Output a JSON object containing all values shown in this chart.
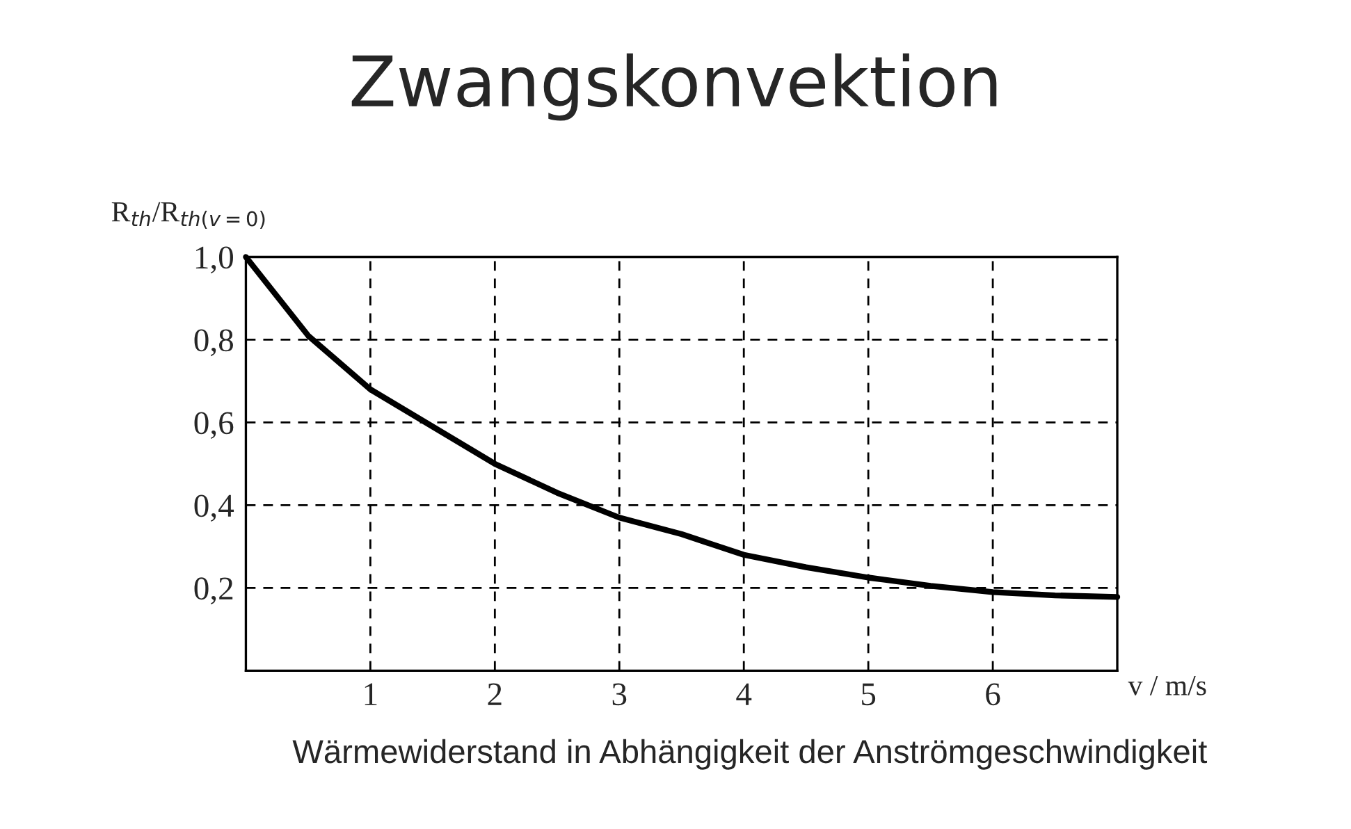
{
  "chart_data": {
    "type": "line",
    "title": "Zwangskonvektion",
    "xlabel": "v / m/s",
    "ylabel": "R$_{th}$/R$_{th(v=0)}$",
    "annotations": [
      "Wärmewiderstand in Abhängigkeit der Anströmgeschwindigkeit"
    ],
    "x": [
      0,
      0.5,
      1,
      1.5,
      2,
      2.5,
      3,
      3.5,
      4,
      4.5,
      5,
      5.5,
      6,
      6.5,
      7
    ],
    "series": [
      {
        "color": "#000000",
        "values": [
          1.0,
          0.81,
          0.68,
          0.59,
          0.5,
          0.43,
          0.37,
          0.33,
          0.28,
          0.25,
          0.225,
          0.205,
          0.19,
          0.182,
          0.178
        ]
      }
    ],
    "xlim": [
      0,
      7
    ],
    "xticks": [
      1,
      2,
      3,
      4,
      5,
      6
    ],
    "ylim": [
      0,
      1.0
    ],
    "yticks": [
      {
        "value": 0.2,
        "label": "0,2"
      },
      {
        "value": 0.4,
        "label": "0,4"
      },
      {
        "value": 0.6,
        "label": "0,6"
      },
      {
        "value": 0.8,
        "label": "0,8"
      },
      {
        "value": 1.0,
        "label": "1,0"
      }
    ],
    "grid": true,
    "line_style": "solid"
  }
}
